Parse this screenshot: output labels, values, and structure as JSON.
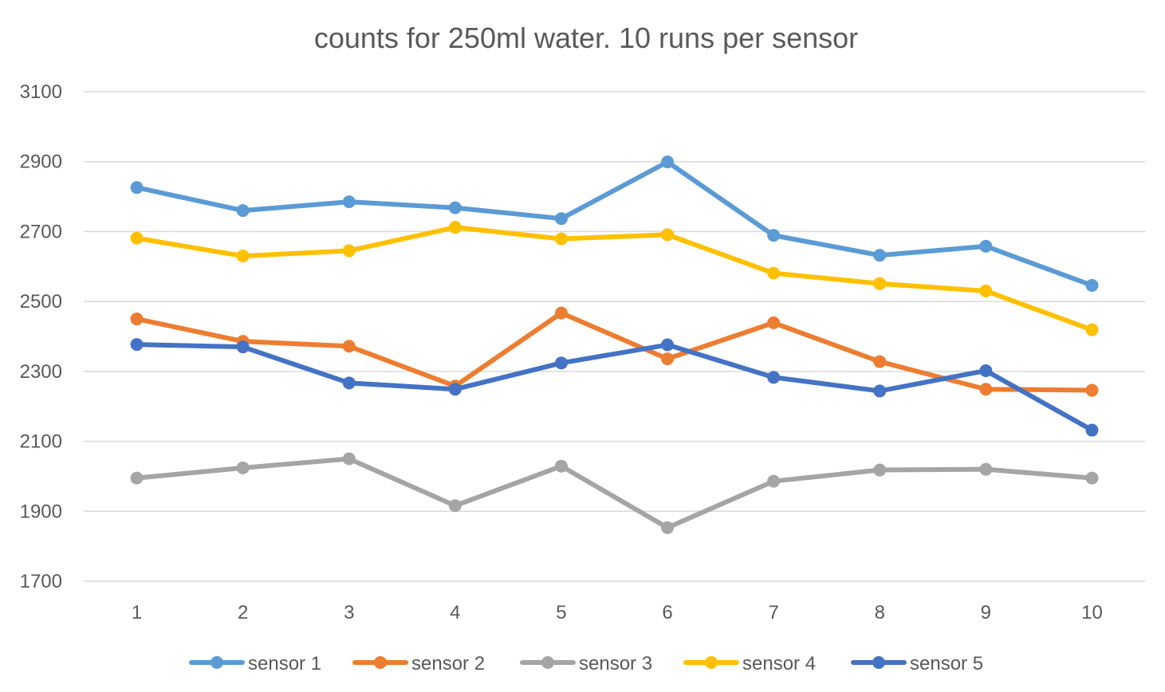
{
  "chart_data": {
    "type": "line",
    "title": "counts for 250ml water. 10 runs per sensor",
    "xlabel": "",
    "ylabel": "",
    "categories": [
      "1",
      "2",
      "3",
      "4",
      "5",
      "6",
      "7",
      "8",
      "9",
      "10"
    ],
    "ylim": [
      1700,
      3100
    ],
    "yticks": [
      "1700",
      "1900",
      "2100",
      "2300",
      "2500",
      "2700",
      "2900",
      "3100"
    ],
    "grid": true,
    "legend_position": "bottom",
    "series": [
      {
        "name": "sensor 1",
        "color": "#5b9bd5",
        "values": [
          2826,
          2760,
          2785,
          2768,
          2737,
          2899,
          2689,
          2632,
          2658,
          2546
        ]
      },
      {
        "name": "sensor 2",
        "color": "#ed7d31",
        "values": [
          2450,
          2386,
          2372,
          2258,
          2467,
          2336,
          2439,
          2328,
          2249,
          2246
        ]
      },
      {
        "name": "sensor 3",
        "color": "#a5a5a5",
        "values": [
          1995,
          2024,
          2050,
          1916,
          2029,
          1853,
          1986,
          2018,
          2020,
          1995
        ]
      },
      {
        "name": "sensor 4",
        "color": "#ffc000",
        "values": [
          2681,
          2630,
          2645,
          2712,
          2679,
          2691,
          2581,
          2551,
          2530,
          2419
        ]
      },
      {
        "name": "sensor 5",
        "color": "#4472c4",
        "values": [
          2377,
          2370,
          2267,
          2249,
          2324,
          2376,
          2283,
          2244,
          2302,
          2132
        ]
      }
    ]
  }
}
